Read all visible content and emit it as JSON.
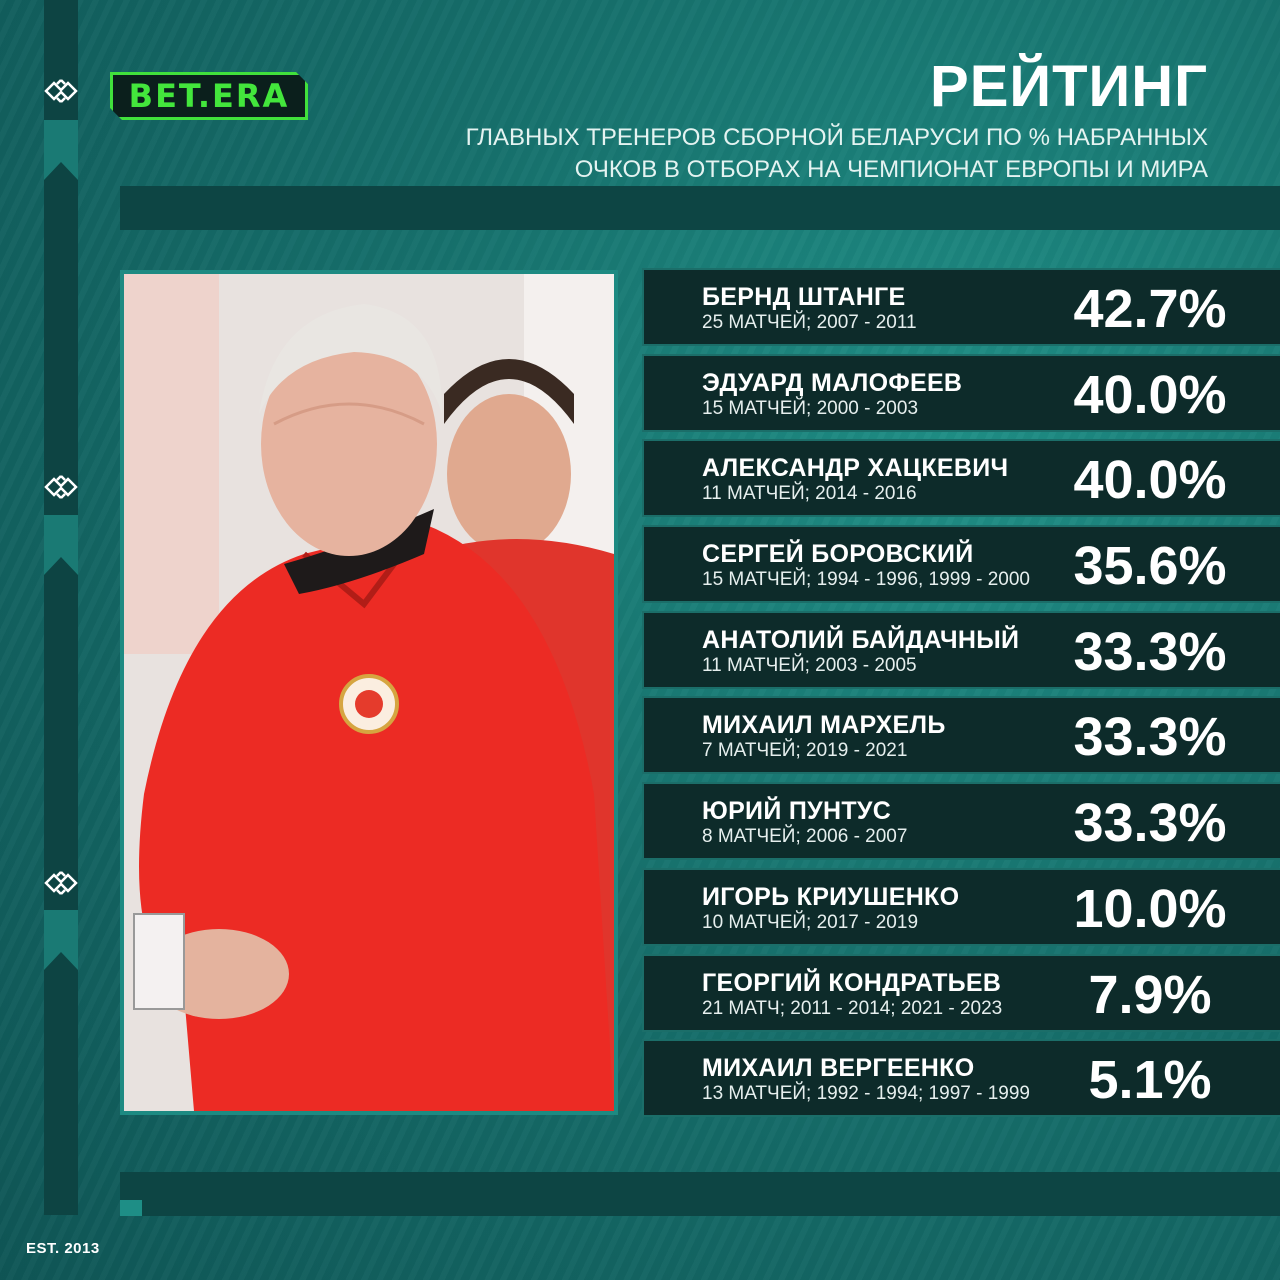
{
  "brand": {
    "logo_text": "BET.ERA",
    "established": "EST. 2013",
    "accent_color": "#43e63c"
  },
  "header": {
    "title": "РЕЙТИНГ",
    "subtitle_line1": "ГЛАВНЫХ ТРЕНЕРОВ СБОРНОЙ БЕЛАРУСИ ПО % НАБРАННЫХ",
    "subtitle_line2": "ОЧКОВ В ОТБОРАХ НА ЧЕМПИОНАТ ЕВРОПЫ И МИРА"
  },
  "ranking": [
    {
      "name": "БЕРНД ШТАНГЕ",
      "meta": "25 МАТЧЕЙ; 2007 - 2011",
      "percent": "42.7%"
    },
    {
      "name": "ЭДУАРД МАЛОФЕЕВ",
      "meta": "15 МАТЧЕЙ; 2000 - 2003",
      "percent": "40.0%"
    },
    {
      "name": "АЛЕКСАНДР ХАЦКЕВИЧ",
      "meta": "11 МАТЧЕЙ; 2014 - 2016",
      "percent": "40.0%"
    },
    {
      "name": "СЕРГЕЙ БОРОВСКИЙ",
      "meta": "15 МАТЧЕЙ; 1994 - 1996, 1999 - 2000",
      "percent": "35.6%"
    },
    {
      "name": "АНАТОЛИЙ БАЙДАЧНЫЙ",
      "meta": "11 МАТЧЕЙ; 2003 - 2005",
      "percent": "33.3%"
    },
    {
      "name": "МИХАИЛ МАРХЕЛЬ",
      "meta": "7 МАТЧЕЙ; 2019 - 2021",
      "percent": "33.3%"
    },
    {
      "name": "ЮРИЙ ПУНТУС",
      "meta": "8 МАТЧЕЙ; 2006 - 2007",
      "percent": "33.3%"
    },
    {
      "name": "ИГОРЬ КРИУШЕНКО",
      "meta": "10 МАТЧЕЙ; 2017 - 2019",
      "percent": "10.0%"
    },
    {
      "name": "ГЕОРГИЙ КОНДРАТЬЕВ",
      "meta": "21 МАТЧ; 2011 - 2014; 2021 - 2023",
      "percent": "7.9%"
    },
    {
      "name": "МИХАИЛ ВЕРГЕЕНКО",
      "meta": "13 МАТЧЕЙ; 1992 - 1994; 1997 - 1999",
      "percent": "5.1%"
    }
  ]
}
